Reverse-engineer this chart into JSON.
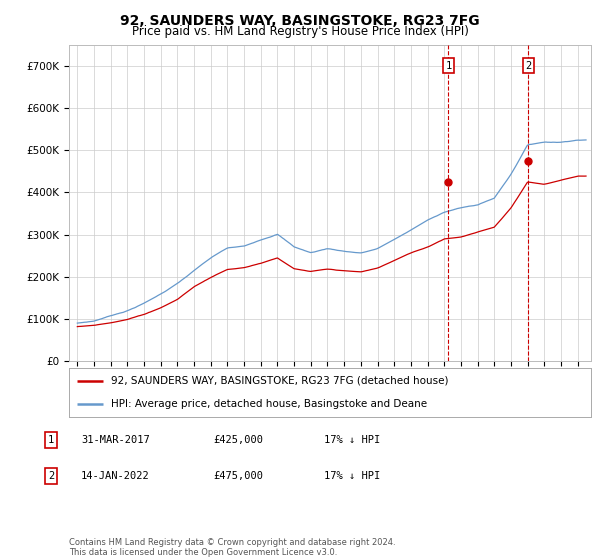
{
  "title": "92, SAUNDERS WAY, BASINGSTOKE, RG23 7FG",
  "subtitle": "Price paid vs. HM Land Registry's House Price Index (HPI)",
  "legend_line1": "92, SAUNDERS WAY, BASINGSTOKE, RG23 7FG (detached house)",
  "legend_line2": "HPI: Average price, detached house, Basingstoke and Deane",
  "sale1_date": "31-MAR-2017",
  "sale1_price": "£425,000",
  "sale1_note": "17% ↓ HPI",
  "sale2_date": "14-JAN-2022",
  "sale2_price": "£475,000",
  "sale2_note": "17% ↓ HPI",
  "footer": "Contains HM Land Registry data © Crown copyright and database right 2024.\nThis data is licensed under the Open Government Licence v3.0.",
  "red_color": "#cc0000",
  "blue_color": "#6699cc",
  "ylim": [
    0,
    750000
  ],
  "yticks": [
    0,
    100000,
    200000,
    300000,
    400000,
    500000,
    600000,
    700000
  ],
  "sale1_date_num": 2017.25,
  "sale2_date_num": 2022.04,
  "background_color": "#ffffff",
  "grid_color": "#cccccc",
  "years_hpi": [
    1995,
    1996,
    1997,
    1998,
    1999,
    2000,
    2001,
    2002,
    2003,
    2004,
    2005,
    2006,
    2007,
    2008,
    2009,
    2010,
    2011,
    2012,
    2013,
    2014,
    2015,
    2016,
    2017,
    2018,
    2019,
    2020,
    2021,
    2022,
    2023,
    2024,
    2025
  ],
  "hpi_values": [
    90000,
    95000,
    108000,
    120000,
    138000,
    160000,
    185000,
    215000,
    245000,
    268000,
    272000,
    288000,
    302000,
    272000,
    258000,
    268000,
    262000,
    258000,
    268000,
    290000,
    312000,
    335000,
    355000,
    365000,
    372000,
    388000,
    445000,
    515000,
    522000,
    522000,
    528000
  ],
  "red_values": [
    82000,
    85000,
    92000,
    100000,
    112000,
    128000,
    148000,
    178000,
    200000,
    220000,
    224000,
    235000,
    248000,
    222000,
    215000,
    220000,
    216000,
    213000,
    222000,
    240000,
    258000,
    272000,
    292000,
    297000,
    308000,
    320000,
    366000,
    428000,
    422000,
    432000,
    442000
  ]
}
